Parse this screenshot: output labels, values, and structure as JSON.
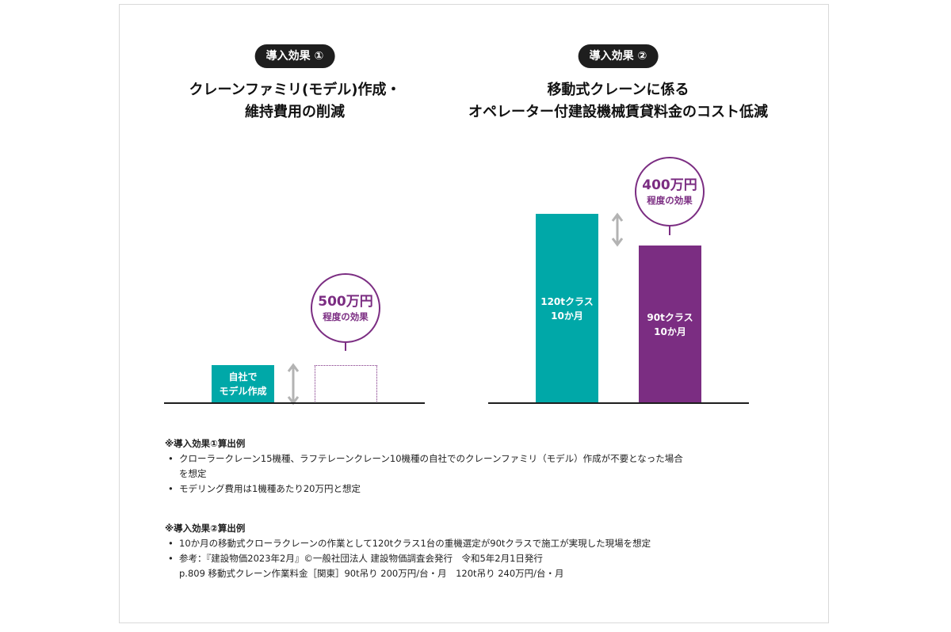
{
  "colors": {
    "teal": "#00a8a8",
    "purple": "#7b2d82",
    "dark": "#1e1e1e"
  },
  "left": {
    "badge": "導入効果 ①",
    "title_line1": "クレーンファミリ(モデル)作成・",
    "title_line2": "維持費用の削減",
    "callout_amount": "500万円",
    "callout_sub": "程度の効果",
    "bar_label_line1": "自社で",
    "bar_label_line2": "モデル作成"
  },
  "right": {
    "badge": "導入効果 ②",
    "title_line1": "移動式クレーンに係る",
    "title_line2": "オペレーター付建設機械賃貸料金のコスト低減",
    "callout_amount": "400万円",
    "callout_sub": "程度の効果",
    "bar1_line1": "120tクラス",
    "bar1_line2": "10か月",
    "bar2_line1": "90tクラス",
    "bar2_line2": "10か月"
  },
  "chart_data": [
    {
      "type": "bar",
      "categories": [
        "自社でモデル作成",
        ""
      ],
      "note": "second bar is drawn as a dotted outline (eliminated cost)",
      "values": [
        1,
        0
      ],
      "annotation": "500万円 程度の効果"
    },
    {
      "type": "bar",
      "categories": [
        "120tクラス 10か月",
        "90tクラス 10か月"
      ],
      "values": [
        240,
        200
      ],
      "annotation": "400万円 程度の効果"
    }
  ],
  "notes": {
    "section1_title": "※導入効果①算出例",
    "section1_item1": "クローラークレーン15機種、ラフテレーンクレーン10機種の自社でのクレーンファミリ（モデル）作成が不要となった場合",
    "section1_item1_cont": "を想定",
    "section1_item2": "モデリング費用は1機種あたり20万円と想定",
    "section2_title": "※導入効果②算出例",
    "section2_item1": "10か月の移動式クローラクレーンの作業として120tクラス1台の重機選定が90tクラスで施工が実現した現場を想定",
    "section2_item2": "参考：『建設物価2023年2月』©一般社団法人 建設物価調査会発行　令和5年2月1日発行",
    "section2_item2_cont": "p.809 移動式クレーン作業料金［関東］90t吊り 200万円/台・月　120t吊り 240万円/台・月"
  }
}
